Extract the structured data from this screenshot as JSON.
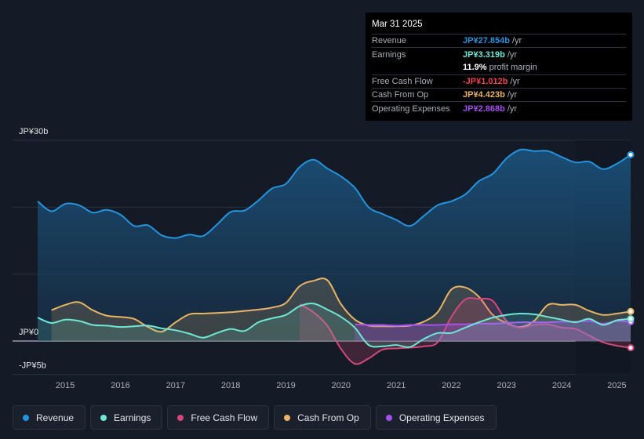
{
  "colors": {
    "revenue": "#2394df",
    "earnings": "#6ee7d5",
    "fcf": "#d5477a",
    "cfo": "#eab464",
    "opex": "#a650f0",
    "background": "#151b26",
    "tooltip_bg": "#000000",
    "fcf_value_text": "#f0434d"
  },
  "tooltip": {
    "date": "Mar 31 2025",
    "rows": [
      {
        "label": "Revenue",
        "value": "JP¥27.854b",
        "unit": "/yr"
      },
      {
        "label": "Earnings",
        "value": "JP¥3.319b",
        "unit": "/yr"
      },
      {
        "label": "",
        "value": "11.9%",
        "unit": "profit margin"
      },
      {
        "label": "Free Cash Flow",
        "value": "-JP¥1.012b",
        "unit": "/yr"
      },
      {
        "label": "Cash From Op",
        "value": "JP¥4.423b",
        "unit": "/yr"
      },
      {
        "label": "Operating Expenses",
        "value": "JP¥2.868b",
        "unit": "/yr"
      }
    ]
  },
  "legend": {
    "items": [
      {
        "label": "Revenue",
        "icon": "revenue-dot-icon"
      },
      {
        "label": "Earnings",
        "icon": "earnings-dot-icon"
      },
      {
        "label": "Free Cash Flow",
        "icon": "fcf-dot-icon"
      },
      {
        "label": "Cash From Op",
        "icon": "cfo-dot-icon"
      },
      {
        "label": "Operating Expenses",
        "icon": "opex-dot-icon"
      }
    ]
  },
  "chart_data": {
    "type": "area",
    "title": "",
    "xlabel": "",
    "ylabel": "",
    "unit": "JP¥ billions",
    "xlim": [
      2014.5,
      2025.25
    ],
    "ylim": [
      -5,
      30
    ],
    "y_tick_labels": [
      {
        "value": 30,
        "label": "JP¥30b"
      },
      {
        "value": 0,
        "label": "JP¥0"
      },
      {
        "value": -5,
        "label": "-JP¥5b"
      }
    ],
    "gridlines": [
      30,
      20,
      10,
      0,
      -5
    ],
    "x_ticks": [
      2015,
      2016,
      2017,
      2018,
      2019,
      2020,
      2021,
      2022,
      2023,
      2024,
      2025
    ],
    "x_tick_labels": [
      "2015",
      "2016",
      "2017",
      "2018",
      "2019",
      "2020",
      "2021",
      "2022",
      "2023",
      "2024",
      "2025"
    ],
    "highlight_start": 2024.25,
    "series": [
      {
        "name": "Revenue",
        "key": "revenue",
        "x": [
          2014.5,
          2014.75,
          2015.0,
          2015.25,
          2015.5,
          2015.75,
          2016.0,
          2016.25,
          2016.5,
          2016.75,
          2017.0,
          2017.25,
          2017.5,
          2017.75,
          2018.0,
          2018.25,
          2018.5,
          2018.75,
          2019.0,
          2019.25,
          2019.5,
          2019.75,
          2020.0,
          2020.25,
          2020.5,
          2020.75,
          2021.0,
          2021.25,
          2021.5,
          2021.75,
          2022.0,
          2022.25,
          2022.5,
          2022.75,
          2023.0,
          2023.25,
          2023.5,
          2023.75,
          2024.0,
          2024.25,
          2024.5,
          2024.75,
          2025.0,
          2025.25
        ],
        "values": [
          20.9,
          19.4,
          20.5,
          20.3,
          19.2,
          19.6,
          18.9,
          17.2,
          17.3,
          15.8,
          15.4,
          15.9,
          15.7,
          17.4,
          19.3,
          19.5,
          21.0,
          22.8,
          23.5,
          26.0,
          27.1,
          25.8,
          24.6,
          22.9,
          20.0,
          19.0,
          18.1,
          17.2,
          18.7,
          20.3,
          20.9,
          21.9,
          23.9,
          25.0,
          27.3,
          28.6,
          28.4,
          28.4,
          27.5,
          26.7,
          26.8,
          25.7,
          26.5,
          27.85
        ]
      },
      {
        "name": "Earnings",
        "key": "earnings",
        "x": [
          2014.5,
          2014.75,
          2015.0,
          2015.25,
          2015.5,
          2015.75,
          2016.0,
          2016.25,
          2016.5,
          2016.75,
          2017.0,
          2017.25,
          2017.5,
          2017.75,
          2018.0,
          2018.25,
          2018.5,
          2018.75,
          2019.0,
          2019.25,
          2019.5,
          2019.75,
          2020.0,
          2020.25,
          2020.5,
          2020.75,
          2021.0,
          2021.25,
          2021.5,
          2021.75,
          2022.0,
          2022.25,
          2022.5,
          2022.75,
          2023.0,
          2023.25,
          2023.5,
          2023.75,
          2024.0,
          2024.25,
          2024.5,
          2024.75,
          2025.0,
          2025.25
        ],
        "values": [
          3.5,
          2.7,
          3.2,
          3.0,
          2.4,
          2.3,
          2.1,
          2.2,
          2.3,
          1.9,
          1.6,
          1.1,
          0.5,
          1.2,
          1.8,
          1.5,
          2.8,
          3.4,
          3.9,
          5.2,
          5.6,
          4.7,
          3.6,
          2.0,
          -0.6,
          -0.8,
          -0.6,
          -0.9,
          0.3,
          1.2,
          1.2,
          2.0,
          2.8,
          3.5,
          3.9,
          4.1,
          4.0,
          3.6,
          3.2,
          2.8,
          3.3,
          2.4,
          3.1,
          3.32
        ]
      },
      {
        "name": "Free Cash Flow",
        "key": "fcf",
        "x": [
          2019.25,
          2019.5,
          2019.75,
          2020.0,
          2020.25,
          2020.5,
          2020.75,
          2021.0,
          2021.25,
          2021.5,
          2021.75,
          2022.0,
          2022.25,
          2022.5,
          2022.75,
          2023.0,
          2023.25,
          2023.5,
          2023.75,
          2024.0,
          2024.25,
          2024.5,
          2024.75,
          2025.0,
          2025.25
        ],
        "values": [
          5.5,
          4.3,
          2.3,
          -1.2,
          -3.4,
          -2.6,
          -1.3,
          -1.1,
          -1.0,
          -0.8,
          -0.2,
          3.6,
          6.2,
          6.3,
          6.0,
          3.0,
          2.0,
          2.4,
          2.5,
          2.0,
          1.8,
          0.8,
          -0.2,
          -0.7,
          -1.01
        ]
      },
      {
        "name": "Cash From Op",
        "key": "cfo",
        "x": [
          2014.75,
          2015.0,
          2015.25,
          2015.5,
          2015.75,
          2016.0,
          2016.25,
          2016.5,
          2016.75,
          2017.0,
          2017.25,
          2017.5,
          2017.75,
          2018.0,
          2018.25,
          2018.5,
          2018.75,
          2019.0,
          2019.25,
          2019.5,
          2019.75,
          2020.0,
          2020.25,
          2020.5,
          2020.75,
          2021.0,
          2021.25,
          2021.5,
          2021.75,
          2022.0,
          2022.25,
          2022.5,
          2022.75,
          2023.0,
          2023.25,
          2023.5,
          2023.75,
          2024.0,
          2024.25,
          2024.5,
          2024.75,
          2025.0,
          2025.25
        ],
        "values": [
          4.6,
          5.4,
          5.8,
          4.6,
          3.8,
          3.6,
          3.3,
          2.1,
          1.4,
          2.8,
          4.0,
          4.1,
          4.2,
          4.3,
          4.5,
          4.7,
          5.0,
          5.7,
          8.2,
          9.0,
          9.1,
          5.5,
          3.2,
          2.3,
          2.2,
          2.2,
          2.3,
          2.9,
          4.3,
          7.7,
          8.0,
          6.6,
          3.9,
          2.7,
          2.1,
          3.0,
          5.4,
          5.4,
          5.4,
          4.5,
          3.9,
          4.1,
          4.42
        ]
      },
      {
        "name": "Operating Expenses",
        "key": "opex",
        "x": [
          2020.25,
          2020.5,
          2020.75,
          2021.0,
          2021.25,
          2021.5,
          2021.75,
          2022.0,
          2022.25,
          2022.5,
          2022.75,
          2023.0,
          2023.25,
          2023.5,
          2023.75,
          2024.0,
          2024.25,
          2024.5,
          2024.75,
          2025.0,
          2025.25
        ],
        "values": [
          2.5,
          2.4,
          2.4,
          2.3,
          2.4,
          2.4,
          2.4,
          2.5,
          2.5,
          2.6,
          2.6,
          2.7,
          2.8,
          2.8,
          2.8,
          2.9,
          2.9,
          3.0,
          2.6,
          3.0,
          2.87
        ]
      }
    ]
  }
}
